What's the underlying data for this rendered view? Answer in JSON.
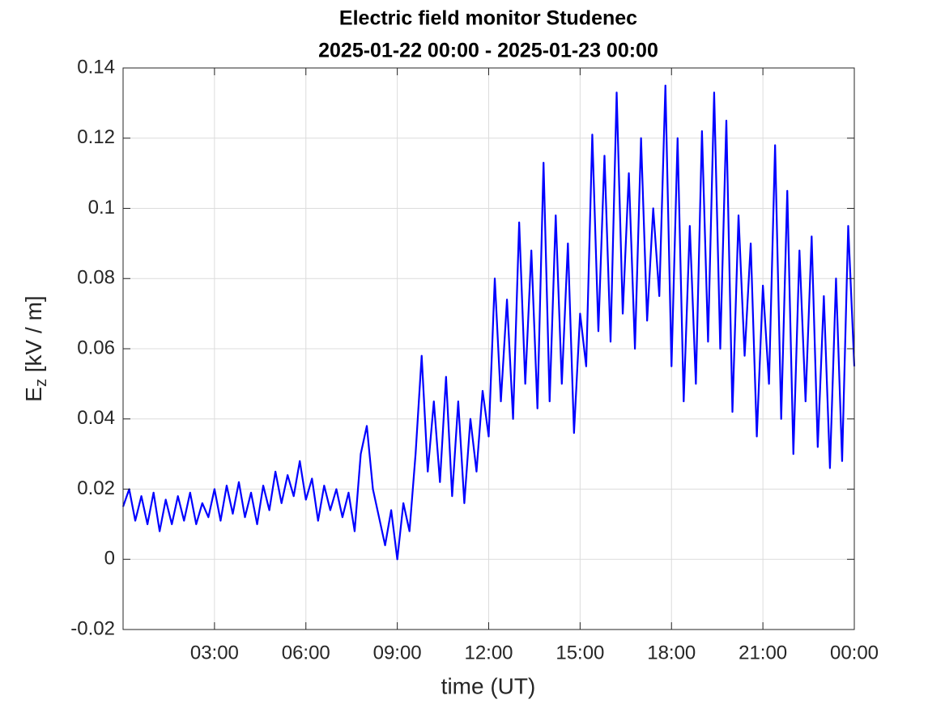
{
  "chart_data": {
    "type": "line",
    "title": "Electric field monitor Studenec",
    "subtitle": "2025-01-22 00:00 - 2025-01-23 00:00",
    "xlabel": "time (UT)",
    "ylabel": [
      "E",
      "z",
      " [kV / m]"
    ],
    "xlim": [
      0,
      24
    ],
    "xticks": [
      {
        "value": 3,
        "label": "03:00"
      },
      {
        "value": 6,
        "label": "06:00"
      },
      {
        "value": 9,
        "label": "09:00"
      },
      {
        "value": 12,
        "label": "12:00"
      },
      {
        "value": 15,
        "label": "15:00"
      },
      {
        "value": 18,
        "label": "18:00"
      },
      {
        "value": 21,
        "label": "21:00"
      },
      {
        "value": 24,
        "label": "00:00"
      }
    ],
    "ylim": [
      -0.02,
      0.14
    ],
    "yticks": [
      -0.02,
      0,
      0.02,
      0.04,
      0.06,
      0.08,
      0.1,
      0.12,
      0.14
    ],
    "grid": true,
    "series": [
      {
        "color": "#0000ff",
        "x": [
          0,
          0.2,
          0.4,
          0.6,
          0.8,
          1.0,
          1.2,
          1.4,
          1.6,
          1.8,
          2.0,
          2.2,
          2.4,
          2.6,
          2.8,
          3.0,
          3.2,
          3.4,
          3.6,
          3.8,
          4.0,
          4.2,
          4.4,
          4.6,
          4.8,
          5.0,
          5.2,
          5.4,
          5.6,
          5.8,
          6.0,
          6.2,
          6.4,
          6.6,
          6.8,
          7.0,
          7.2,
          7.4,
          7.6,
          7.8,
          8.0,
          8.2,
          8.4,
          8.6,
          8.8,
          9.0,
          9.2,
          9.4,
          9.6,
          9.8,
          10.0,
          10.2,
          10.4,
          10.6,
          10.8,
          11.0,
          11.2,
          11.4,
          11.6,
          11.8,
          12.0,
          12.2,
          12.4,
          12.6,
          12.8,
          13.0,
          13.2,
          13.4,
          13.6,
          13.8,
          14.0,
          14.2,
          14.4,
          14.6,
          14.8,
          15.0,
          15.2,
          15.4,
          15.6,
          15.8,
          16.0,
          16.2,
          16.4,
          16.6,
          16.8,
          17.0,
          17.2,
          17.4,
          17.6,
          17.8,
          18.0,
          18.2,
          18.4,
          18.6,
          18.8,
          19.0,
          19.2,
          19.4,
          19.6,
          19.8,
          20.0,
          20.2,
          20.4,
          20.6,
          20.8,
          21.0,
          21.2,
          21.4,
          21.6,
          21.8,
          22.0,
          22.2,
          22.4,
          22.6,
          22.8,
          23.0,
          23.2,
          23.4,
          23.6,
          23.8,
          24.0
        ],
        "values": [
          0.015,
          0.02,
          0.011,
          0.018,
          0.01,
          0.019,
          0.008,
          0.017,
          0.01,
          0.018,
          0.011,
          0.019,
          0.01,
          0.016,
          0.012,
          0.02,
          0.011,
          0.021,
          0.013,
          0.022,
          0.012,
          0.019,
          0.01,
          0.021,
          0.014,
          0.025,
          0.016,
          0.024,
          0.018,
          0.028,
          0.017,
          0.023,
          0.011,
          0.021,
          0.014,
          0.02,
          0.012,
          0.019,
          0.008,
          0.03,
          0.038,
          0.02,
          0.012,
          0.004,
          0.014,
          0.0,
          0.016,
          0.008,
          0.03,
          0.058,
          0.025,
          0.045,
          0.022,
          0.052,
          0.018,
          0.045,
          0.016,
          0.04,
          0.025,
          0.048,
          0.035,
          0.08,
          0.045,
          0.074,
          0.04,
          0.096,
          0.05,
          0.088,
          0.043,
          0.113,
          0.045,
          0.098,
          0.05,
          0.09,
          0.036,
          0.07,
          0.055,
          0.121,
          0.065,
          0.115,
          0.062,
          0.133,
          0.07,
          0.11,
          0.06,
          0.12,
          0.068,
          0.1,
          0.075,
          0.135,
          0.055,
          0.12,
          0.045,
          0.095,
          0.05,
          0.122,
          0.062,
          0.133,
          0.06,
          0.125,
          0.042,
          0.098,
          0.058,
          0.09,
          0.035,
          0.078,
          0.05,
          0.118,
          0.04,
          0.105,
          0.03,
          0.088,
          0.045,
          0.092,
          0.032,
          0.075,
          0.026,
          0.08,
          0.028,
          0.095,
          0.055
        ]
      }
    ]
  }
}
